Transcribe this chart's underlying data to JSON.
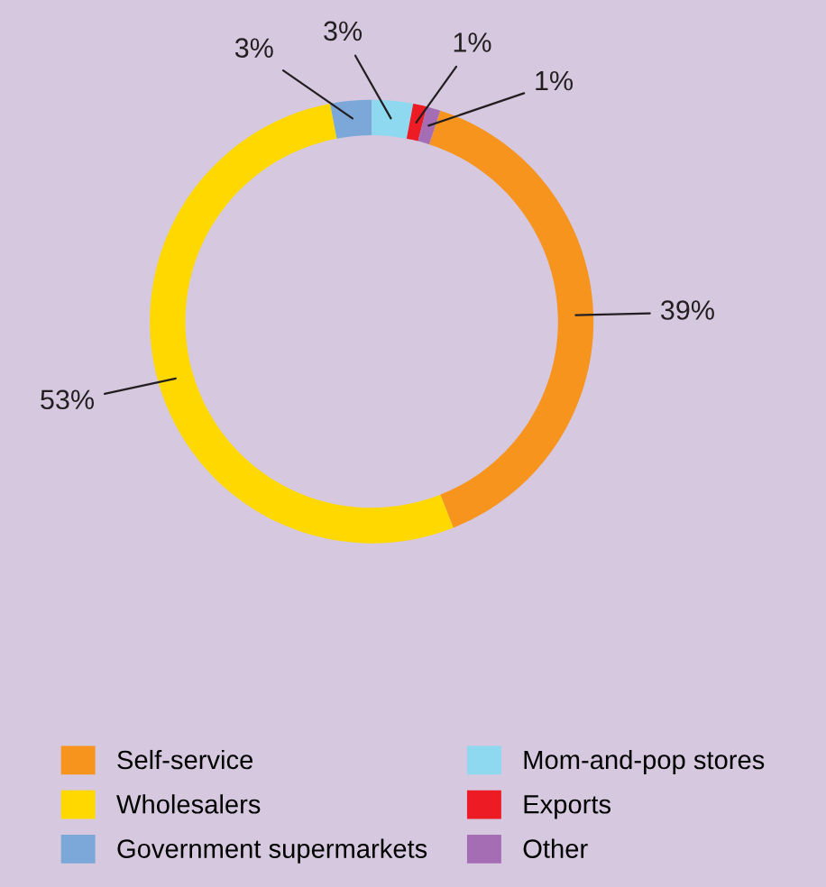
{
  "chart_data": {
    "type": "donut",
    "categories": [
      "Self-service",
      "Wholesalers",
      "Government supermarkets",
      "Mom-and-pop stores",
      "Exports",
      "Other"
    ],
    "values": [
      39,
      53,
      3,
      3,
      1,
      1
    ],
    "colors": [
      "#f7941d",
      "#ffd800",
      "#7ba7d9",
      "#8ed8f0",
      "#ed1c24",
      "#a56eb4"
    ],
    "value_labels": [
      "39%",
      "53%",
      "3%",
      "3%",
      "1%",
      "1%"
    ],
    "legend": "bottom"
  }
}
